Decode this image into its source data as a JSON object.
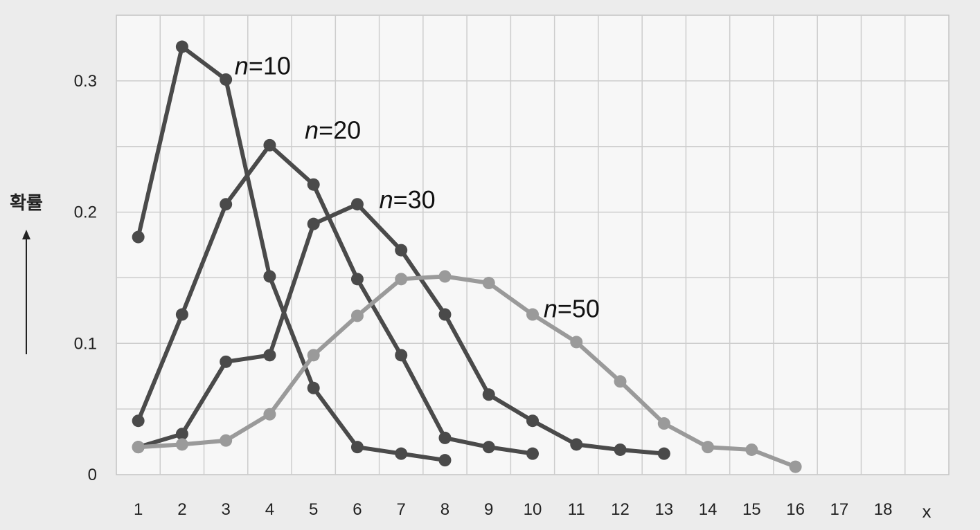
{
  "chart_data": {
    "type": "line",
    "title": "",
    "xlabel": "x",
    "ylabel": "확률",
    "xlim": [
      0.5,
      19.5
    ],
    "ylim": [
      0,
      0.35
    ],
    "x_ticks": [
      1,
      2,
      3,
      4,
      5,
      6,
      7,
      8,
      9,
      10,
      11,
      12,
      13,
      14,
      15,
      16,
      17,
      18
    ],
    "y_ticks": [
      {
        "value": 0,
        "label": "0"
      },
      {
        "value": 0.1,
        "label": "0.1"
      },
      {
        "value": 0.2,
        "label": "0.2"
      },
      {
        "value": 0.3,
        "label": "0.3"
      }
    ],
    "grid": true,
    "series": [
      {
        "name": "n=10",
        "label_n": "n",
        "label_rest": "=10",
        "color": "#4a4a4a",
        "label_at": [
          3.2,
          0.305
        ],
        "points": [
          [
            1,
            0.181
          ],
          [
            2,
            0.326
          ],
          [
            3,
            0.301
          ],
          [
            4,
            0.151
          ],
          [
            5,
            0.066
          ],
          [
            6,
            0.021
          ],
          [
            7,
            0.016
          ],
          [
            8,
            0.011
          ]
        ]
      },
      {
        "name": "n=20",
        "label_n": "n",
        "label_rest": "=20",
        "color": "#4a4a4a",
        "label_at": [
          4.8,
          0.256
        ],
        "points": [
          [
            1,
            0.041
          ],
          [
            2,
            0.122
          ],
          [
            3,
            0.206
          ],
          [
            4,
            0.251
          ],
          [
            5,
            0.221
          ],
          [
            6,
            0.149
          ],
          [
            7,
            0.091
          ],
          [
            8,
            0.028
          ],
          [
            9,
            0.021
          ],
          [
            10,
            0.016
          ]
        ]
      },
      {
        "name": "n=30",
        "label_n": "n",
        "label_rest": "=30",
        "color": "#4a4a4a",
        "label_at": [
          6.5,
          0.203
        ],
        "points": [
          [
            1,
            0.021
          ],
          [
            2,
            0.031
          ],
          [
            3,
            0.086
          ],
          [
            4,
            0.091
          ],
          [
            5,
            0.191
          ],
          [
            6,
            0.206
          ],
          [
            7,
            0.171
          ],
          [
            8,
            0.122
          ],
          [
            9,
            0.061
          ],
          [
            10,
            0.041
          ],
          [
            11,
            0.023
          ],
          [
            12,
            0.019
          ],
          [
            13,
            0.016
          ]
        ]
      },
      {
        "name": "n=50",
        "label_n": "n",
        "label_rest": "=50",
        "color": "#9a9a9a",
        "label_at": [
          10.25,
          0.12
        ],
        "points": [
          [
            1,
            0.021
          ],
          [
            2,
            0.023
          ],
          [
            3,
            0.026
          ],
          [
            4,
            0.046
          ],
          [
            5,
            0.091
          ],
          [
            6,
            0.121
          ],
          [
            7,
            0.149
          ],
          [
            8,
            0.151
          ],
          [
            9,
            0.146
          ],
          [
            10,
            0.122
          ],
          [
            11,
            0.101
          ],
          [
            12,
            0.071
          ],
          [
            13,
            0.039
          ],
          [
            14,
            0.021
          ],
          [
            15,
            0.019
          ],
          [
            16,
            0.006
          ]
        ]
      }
    ]
  }
}
